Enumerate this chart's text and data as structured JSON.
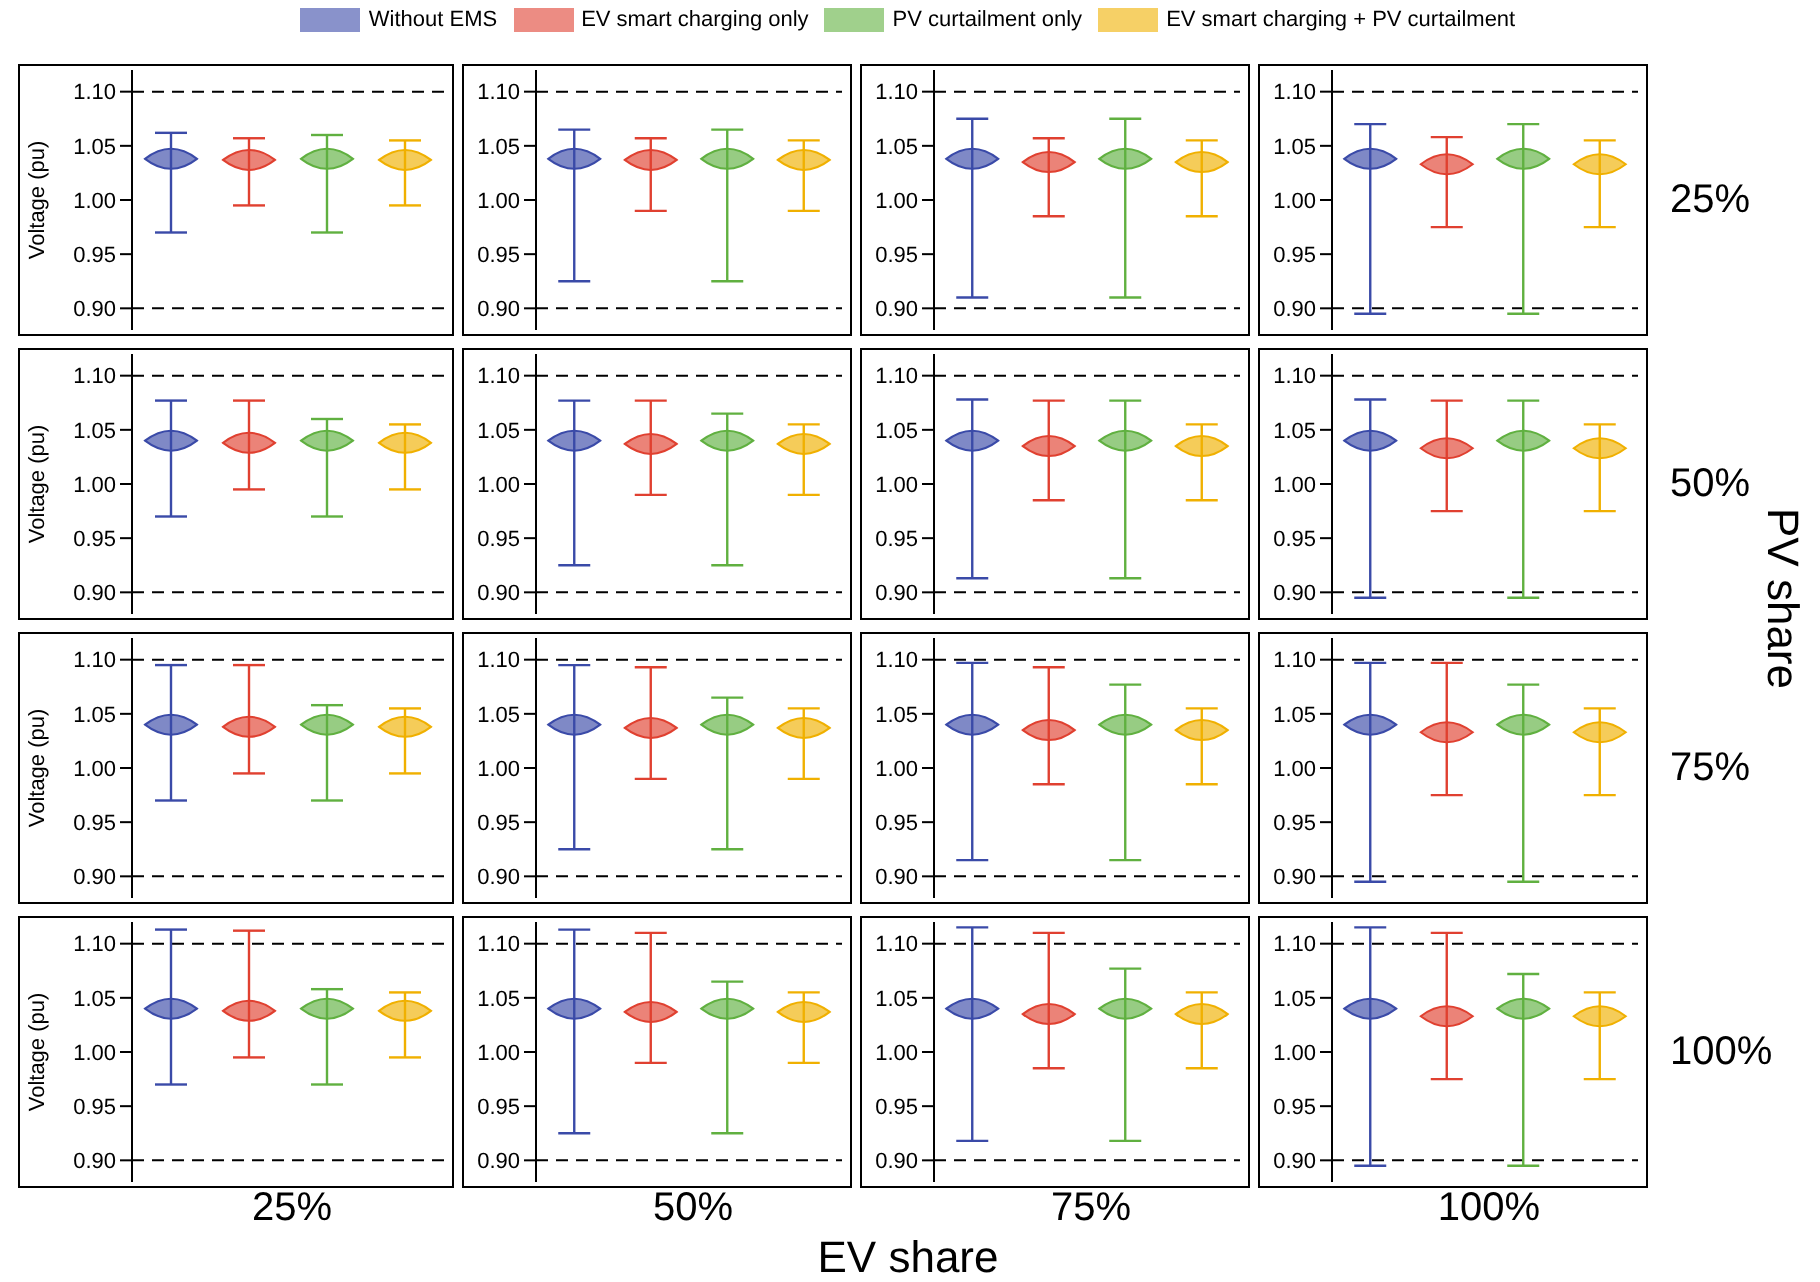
{
  "chart_data": [
    {
      "type": "scatter",
      "legend": "top",
      "annotations": [
        "EV share",
        "PV share"
      ],
      "ylabel": "Voltage (pu)",
      "categories": [
        null,
        null,
        null,
        null
      ],
      "ylim": [
        0.88,
        1.12
      ],
      "yticks": [
        {
          "value": 0.9,
          "label": "0.90"
        },
        {
          "value": 0.95,
          "label": "0.95"
        },
        {
          "value": 1.0,
          "label": "1.00"
        },
        {
          "value": 1.05,
          "label": "1.05"
        },
        {
          "value": 1.1,
          "label": "1.10"
        }
      ],
      "tick_labels": "y",
      "marker": "diamond",
      "ref_lines": [
        {
          "axis": "y",
          "value": 0.9,
          "line_style": "dashed"
        },
        {
          "axis": "y",
          "value": 1.1,
          "line_style": "dashed"
        }
      ],
      "series": [
        {
          "name": "Without EMS",
          "color": "#3a4aa8",
          "values": [
            1.038,
            null,
            null,
            null
          ],
          "errors": [
            [
              0.97,
              1.062
            ],
            null,
            null,
            null
          ]
        },
        {
          "name": "EV smart charging only",
          "color": "#e04030",
          "values": [
            null,
            1.037,
            null,
            null
          ],
          "errors": [
            null,
            [
              0.995,
              1.057
            ],
            null,
            null
          ]
        },
        {
          "name": "PV curtailment only",
          "color": "#60b040",
          "values": [
            null,
            null,
            1.038,
            null
          ],
          "errors": [
            null,
            null,
            [
              0.97,
              1.06
            ],
            null
          ]
        },
        {
          "name": "EV smart charging + PV curtailment",
          "color": "#f0b000",
          "values": [
            null,
            null,
            null,
            1.037
          ],
          "errors": [
            null,
            null,
            null,
            [
              0.995,
              1.055
            ]
          ]
        }
      ]
    },
    {
      "type": "scatter",
      "categories": [
        null,
        null,
        null,
        null
      ],
      "ylim": [
        0.88,
        1.12
      ],
      "yticks": [
        {
          "value": 0.9,
          "label": "0.90"
        },
        {
          "value": 0.95,
          "label": "0.95"
        },
        {
          "value": 1.0,
          "label": "1.00"
        },
        {
          "value": 1.05,
          "label": "1.05"
        },
        {
          "value": 1.1,
          "label": "1.10"
        }
      ],
      "tick_labels": "y",
      "marker": "diamond",
      "ref_lines": [
        {
          "axis": "y",
          "value": 0.9,
          "line_style": "dashed"
        },
        {
          "axis": "y",
          "value": 1.1,
          "line_style": "dashed"
        }
      ],
      "series": [
        {
          "color": "#3a4aa8",
          "values": [
            1.038,
            null,
            null,
            null
          ],
          "errors": [
            [
              0.925,
              1.065
            ],
            null,
            null,
            null
          ]
        },
        {
          "color": "#e04030",
          "values": [
            null,
            1.037,
            null,
            null
          ],
          "errors": [
            null,
            [
              0.99,
              1.057
            ],
            null,
            null
          ]
        },
        {
          "color": "#60b040",
          "values": [
            null,
            null,
            1.038,
            null
          ],
          "errors": [
            null,
            null,
            [
              0.925,
              1.065
            ],
            null
          ]
        },
        {
          "color": "#f0b000",
          "values": [
            null,
            null,
            null,
            1.037
          ],
          "errors": [
            null,
            null,
            null,
            [
              0.99,
              1.055
            ]
          ]
        }
      ]
    },
    {
      "type": "scatter",
      "categories": [
        null,
        null,
        null,
        null
      ],
      "ylim": [
        0.88,
        1.12
      ],
      "yticks": [
        {
          "value": 0.9,
          "label": "0.90"
        },
        {
          "value": 0.95,
          "label": "0.95"
        },
        {
          "value": 1.0,
          "label": "1.00"
        },
        {
          "value": 1.05,
          "label": "1.05"
        },
        {
          "value": 1.1,
          "label": "1.10"
        }
      ],
      "tick_labels": "y",
      "marker": "diamond",
      "ref_lines": [
        {
          "axis": "y",
          "value": 0.9,
          "line_style": "dashed"
        },
        {
          "axis": "y",
          "value": 1.1,
          "line_style": "dashed"
        }
      ],
      "series": [
        {
          "color": "#3a4aa8",
          "values": [
            1.038,
            null,
            null,
            null
          ],
          "errors": [
            [
              0.91,
              1.075
            ],
            null,
            null,
            null
          ]
        },
        {
          "color": "#e04030",
          "values": [
            null,
            1.035,
            null,
            null
          ],
          "errors": [
            null,
            [
              0.985,
              1.057
            ],
            null,
            null
          ]
        },
        {
          "color": "#60b040",
          "values": [
            null,
            null,
            1.038,
            null
          ],
          "errors": [
            null,
            null,
            [
              0.91,
              1.075
            ],
            null
          ]
        },
        {
          "color": "#f0b000",
          "values": [
            null,
            null,
            null,
            1.035
          ],
          "errors": [
            null,
            null,
            null,
            [
              0.985,
              1.055
            ]
          ]
        }
      ]
    },
    {
      "type": "scatter",
      "y2label": "25%",
      "categories": [
        null,
        null,
        null,
        null
      ],
      "ylim": [
        0.88,
        1.12
      ],
      "yticks": [
        {
          "value": 0.9,
          "label": "0.90"
        },
        {
          "value": 0.95,
          "label": "0.95"
        },
        {
          "value": 1.0,
          "label": "1.00"
        },
        {
          "value": 1.05,
          "label": "1.05"
        },
        {
          "value": 1.1,
          "label": "1.10"
        }
      ],
      "tick_labels": "y",
      "marker": "diamond",
      "ref_lines": [
        {
          "axis": "y",
          "value": 0.9,
          "line_style": "dashed"
        },
        {
          "axis": "y",
          "value": 1.1,
          "line_style": "dashed"
        }
      ],
      "series": [
        {
          "color": "#3a4aa8",
          "values": [
            1.038,
            null,
            null,
            null
          ],
          "errors": [
            [
              0.895,
              1.07
            ],
            null,
            null,
            null
          ]
        },
        {
          "color": "#e04030",
          "values": [
            null,
            1.033,
            null,
            null
          ],
          "errors": [
            null,
            [
              0.975,
              1.058
            ],
            null,
            null
          ]
        },
        {
          "color": "#60b040",
          "values": [
            null,
            null,
            1.038,
            null
          ],
          "errors": [
            null,
            null,
            [
              0.895,
              1.07
            ],
            null
          ]
        },
        {
          "color": "#f0b000",
          "values": [
            null,
            null,
            null,
            1.033
          ],
          "errors": [
            null,
            null,
            null,
            [
              0.975,
              1.055
            ]
          ]
        }
      ]
    },
    {
      "type": "scatter",
      "ylabel": "Voltage (pu)",
      "categories": [
        null,
        null,
        null,
        null
      ],
      "ylim": [
        0.88,
        1.12
      ],
      "yticks": [
        {
          "value": 0.9,
          "label": "0.90"
        },
        {
          "value": 0.95,
          "label": "0.95"
        },
        {
          "value": 1.0,
          "label": "1.00"
        },
        {
          "value": 1.05,
          "label": "1.05"
        },
        {
          "value": 1.1,
          "label": "1.10"
        }
      ],
      "tick_labels": "y",
      "marker": "diamond",
      "ref_lines": [
        {
          "axis": "y",
          "value": 0.9,
          "line_style": "dashed"
        },
        {
          "axis": "y",
          "value": 1.1,
          "line_style": "dashed"
        }
      ],
      "series": [
        {
          "color": "#3a4aa8",
          "values": [
            1.04,
            null,
            null,
            null
          ],
          "errors": [
            [
              0.97,
              1.077
            ],
            null,
            null,
            null
          ]
        },
        {
          "color": "#e04030",
          "values": [
            null,
            1.038,
            null,
            null
          ],
          "errors": [
            null,
            [
              0.995,
              1.077
            ],
            null,
            null
          ]
        },
        {
          "color": "#60b040",
          "values": [
            null,
            null,
            1.04,
            null
          ],
          "errors": [
            null,
            null,
            [
              0.97,
              1.06
            ],
            null
          ]
        },
        {
          "color": "#f0b000",
          "values": [
            null,
            null,
            null,
            1.038
          ],
          "errors": [
            null,
            null,
            null,
            [
              0.995,
              1.055
            ]
          ]
        }
      ]
    },
    {
      "type": "scatter",
      "categories": [
        null,
        null,
        null,
        null
      ],
      "ylim": [
        0.88,
        1.12
      ],
      "yticks": [
        {
          "value": 0.9,
          "label": "0.90"
        },
        {
          "value": 0.95,
          "label": "0.95"
        },
        {
          "value": 1.0,
          "label": "1.00"
        },
        {
          "value": 1.05,
          "label": "1.05"
        },
        {
          "value": 1.1,
          "label": "1.10"
        }
      ],
      "tick_labels": "y",
      "marker": "diamond",
      "ref_lines": [
        {
          "axis": "y",
          "value": 0.9,
          "line_style": "dashed"
        },
        {
          "axis": "y",
          "value": 1.1,
          "line_style": "dashed"
        }
      ],
      "series": [
        {
          "color": "#3a4aa8",
          "values": [
            1.04,
            null,
            null,
            null
          ],
          "errors": [
            [
              0.925,
              1.077
            ],
            null,
            null,
            null
          ]
        },
        {
          "color": "#e04030",
          "values": [
            null,
            1.037,
            null,
            null
          ],
          "errors": [
            null,
            [
              0.99,
              1.077
            ],
            null,
            null
          ]
        },
        {
          "color": "#60b040",
          "values": [
            null,
            null,
            1.04,
            null
          ],
          "errors": [
            null,
            null,
            [
              0.925,
              1.065
            ],
            null
          ]
        },
        {
          "color": "#f0b000",
          "values": [
            null,
            null,
            null,
            1.037
          ],
          "errors": [
            null,
            null,
            null,
            [
              0.99,
              1.055
            ]
          ]
        }
      ]
    },
    {
      "type": "scatter",
      "categories": [
        null,
        null,
        null,
        null
      ],
      "ylim": [
        0.88,
        1.12
      ],
      "yticks": [
        {
          "value": 0.9,
          "label": "0.90"
        },
        {
          "value": 0.95,
          "label": "0.95"
        },
        {
          "value": 1.0,
          "label": "1.00"
        },
        {
          "value": 1.05,
          "label": "1.05"
        },
        {
          "value": 1.1,
          "label": "1.10"
        }
      ],
      "tick_labels": "y",
      "marker": "diamond",
      "ref_lines": [
        {
          "axis": "y",
          "value": 0.9,
          "line_style": "dashed"
        },
        {
          "axis": "y",
          "value": 1.1,
          "line_style": "dashed"
        }
      ],
      "series": [
        {
          "color": "#3a4aa8",
          "values": [
            1.04,
            null,
            null,
            null
          ],
          "errors": [
            [
              0.913,
              1.078
            ],
            null,
            null,
            null
          ]
        },
        {
          "color": "#e04030",
          "values": [
            null,
            1.035,
            null,
            null
          ],
          "errors": [
            null,
            [
              0.985,
              1.077
            ],
            null,
            null
          ]
        },
        {
          "color": "#60b040",
          "values": [
            null,
            null,
            1.04,
            null
          ],
          "errors": [
            null,
            null,
            [
              0.913,
              1.077
            ],
            null
          ]
        },
        {
          "color": "#f0b000",
          "values": [
            null,
            null,
            null,
            1.035
          ],
          "errors": [
            null,
            null,
            null,
            [
              0.985,
              1.055
            ]
          ]
        }
      ]
    },
    {
      "type": "scatter",
      "y2label": "50%",
      "categories": [
        null,
        null,
        null,
        null
      ],
      "ylim": [
        0.88,
        1.12
      ],
      "yticks": [
        {
          "value": 0.9,
          "label": "0.90"
        },
        {
          "value": 0.95,
          "label": "0.95"
        },
        {
          "value": 1.0,
          "label": "1.00"
        },
        {
          "value": 1.05,
          "label": "1.05"
        },
        {
          "value": 1.1,
          "label": "1.10"
        }
      ],
      "tick_labels": "y",
      "marker": "diamond",
      "ref_lines": [
        {
          "axis": "y",
          "value": 0.9,
          "line_style": "dashed"
        },
        {
          "axis": "y",
          "value": 1.1,
          "line_style": "dashed"
        }
      ],
      "series": [
        {
          "color": "#3a4aa8",
          "values": [
            1.04,
            null,
            null,
            null
          ],
          "errors": [
            [
              0.895,
              1.078
            ],
            null,
            null,
            null
          ]
        },
        {
          "color": "#e04030",
          "values": [
            null,
            1.033,
            null,
            null
          ],
          "errors": [
            null,
            [
              0.975,
              1.077
            ],
            null,
            null
          ]
        },
        {
          "color": "#60b040",
          "values": [
            null,
            null,
            1.04,
            null
          ],
          "errors": [
            null,
            null,
            [
              0.895,
              1.077
            ],
            null
          ]
        },
        {
          "color": "#f0b000",
          "values": [
            null,
            null,
            null,
            1.033
          ],
          "errors": [
            null,
            null,
            null,
            [
              0.975,
              1.055
            ]
          ]
        }
      ]
    },
    {
      "type": "scatter",
      "ylabel": "Voltage (pu)",
      "categories": [
        null,
        null,
        null,
        null
      ],
      "ylim": [
        0.88,
        1.12
      ],
      "yticks": [
        {
          "value": 0.9,
          "label": "0.90"
        },
        {
          "value": 0.95,
          "label": "0.95"
        },
        {
          "value": 1.0,
          "label": "1.00"
        },
        {
          "value": 1.05,
          "label": "1.05"
        },
        {
          "value": 1.1,
          "label": "1.10"
        }
      ],
      "tick_labels": "y",
      "marker": "diamond",
      "ref_lines": [
        {
          "axis": "y",
          "value": 0.9,
          "line_style": "dashed"
        },
        {
          "axis": "y",
          "value": 1.1,
          "line_style": "dashed"
        }
      ],
      "series": [
        {
          "color": "#3a4aa8",
          "values": [
            1.04,
            null,
            null,
            null
          ],
          "errors": [
            [
              0.97,
              1.095
            ],
            null,
            null,
            null
          ]
        },
        {
          "color": "#e04030",
          "values": [
            null,
            1.038,
            null,
            null
          ],
          "errors": [
            null,
            [
              0.995,
              1.095
            ],
            null,
            null
          ]
        },
        {
          "color": "#60b040",
          "values": [
            null,
            null,
            1.04,
            null
          ],
          "errors": [
            null,
            null,
            [
              0.97,
              1.058
            ],
            null
          ]
        },
        {
          "color": "#f0b000",
          "values": [
            null,
            null,
            null,
            1.038
          ],
          "errors": [
            null,
            null,
            null,
            [
              0.995,
              1.055
            ]
          ]
        }
      ]
    },
    {
      "type": "scatter",
      "categories": [
        null,
        null,
        null,
        null
      ],
      "ylim": [
        0.88,
        1.12
      ],
      "yticks": [
        {
          "value": 0.9,
          "label": "0.90"
        },
        {
          "value": 0.95,
          "label": "0.95"
        },
        {
          "value": 1.0,
          "label": "1.00"
        },
        {
          "value": 1.05,
          "label": "1.05"
        },
        {
          "value": 1.1,
          "label": "1.10"
        }
      ],
      "tick_labels": "y",
      "marker": "diamond",
      "ref_lines": [
        {
          "axis": "y",
          "value": 0.9,
          "line_style": "dashed"
        },
        {
          "axis": "y",
          "value": 1.1,
          "line_style": "dashed"
        }
      ],
      "series": [
        {
          "color": "#3a4aa8",
          "values": [
            1.04,
            null,
            null,
            null
          ],
          "errors": [
            [
              0.925,
              1.095
            ],
            null,
            null,
            null
          ]
        },
        {
          "color": "#e04030",
          "values": [
            null,
            1.037,
            null,
            null
          ],
          "errors": [
            null,
            [
              0.99,
              1.093
            ],
            null,
            null
          ]
        },
        {
          "color": "#60b040",
          "values": [
            null,
            null,
            1.04,
            null
          ],
          "errors": [
            null,
            null,
            [
              0.925,
              1.065
            ],
            null
          ]
        },
        {
          "color": "#f0b000",
          "values": [
            null,
            null,
            null,
            1.037
          ],
          "errors": [
            null,
            null,
            null,
            [
              0.99,
              1.055
            ]
          ]
        }
      ]
    },
    {
      "type": "scatter",
      "categories": [
        null,
        null,
        null,
        null
      ],
      "ylim": [
        0.88,
        1.12
      ],
      "yticks": [
        {
          "value": 0.9,
          "label": "0.90"
        },
        {
          "value": 0.95,
          "label": "0.95"
        },
        {
          "value": 1.0,
          "label": "1.00"
        },
        {
          "value": 1.05,
          "label": "1.05"
        },
        {
          "value": 1.1,
          "label": "1.10"
        }
      ],
      "tick_labels": "y",
      "marker": "diamond",
      "ref_lines": [
        {
          "axis": "y",
          "value": 0.9,
          "line_style": "dashed"
        },
        {
          "axis": "y",
          "value": 1.1,
          "line_style": "dashed"
        }
      ],
      "series": [
        {
          "color": "#3a4aa8",
          "values": [
            1.04,
            null,
            null,
            null
          ],
          "errors": [
            [
              0.915,
              1.097
            ],
            null,
            null,
            null
          ]
        },
        {
          "color": "#e04030",
          "values": [
            null,
            1.035,
            null,
            null
          ],
          "errors": [
            null,
            [
              0.985,
              1.093
            ],
            null,
            null
          ]
        },
        {
          "color": "#60b040",
          "values": [
            null,
            null,
            1.04,
            null
          ],
          "errors": [
            null,
            null,
            [
              0.915,
              1.077
            ],
            null
          ]
        },
        {
          "color": "#f0b000",
          "values": [
            null,
            null,
            null,
            1.035
          ],
          "errors": [
            null,
            null,
            null,
            [
              0.985,
              1.055
            ]
          ]
        }
      ]
    },
    {
      "type": "scatter",
      "y2label": "75%",
      "categories": [
        null,
        null,
        null,
        null
      ],
      "ylim": [
        0.88,
        1.12
      ],
      "yticks": [
        {
          "value": 0.9,
          "label": "0.90"
        },
        {
          "value": 0.95,
          "label": "0.95"
        },
        {
          "value": 1.0,
          "label": "1.00"
        },
        {
          "value": 1.05,
          "label": "1.05"
        },
        {
          "value": 1.1,
          "label": "1.10"
        }
      ],
      "tick_labels": "y",
      "marker": "diamond",
      "ref_lines": [
        {
          "axis": "y",
          "value": 0.9,
          "line_style": "dashed"
        },
        {
          "axis": "y",
          "value": 1.1,
          "line_style": "dashed"
        }
      ],
      "series": [
        {
          "color": "#3a4aa8",
          "values": [
            1.04,
            null,
            null,
            null
          ],
          "errors": [
            [
              0.895,
              1.097
            ],
            null,
            null,
            null
          ]
        },
        {
          "color": "#e04030",
          "values": [
            null,
            1.033,
            null,
            null
          ],
          "errors": [
            null,
            [
              0.975,
              1.097
            ],
            null,
            null
          ]
        },
        {
          "color": "#60b040",
          "values": [
            null,
            null,
            1.04,
            null
          ],
          "errors": [
            null,
            null,
            [
              0.895,
              1.077
            ],
            null
          ]
        },
        {
          "color": "#f0b000",
          "values": [
            null,
            null,
            null,
            1.033
          ],
          "errors": [
            null,
            null,
            null,
            [
              0.975,
              1.055
            ]
          ]
        }
      ]
    },
    {
      "type": "scatter",
      "ylabel": "Voltage (pu)",
      "xlabel": "25%",
      "categories": [
        null,
        null,
        null,
        null
      ],
      "ylim": [
        0.88,
        1.12
      ],
      "yticks": [
        {
          "value": 0.9,
          "label": "0.90"
        },
        {
          "value": 0.95,
          "label": "0.95"
        },
        {
          "value": 1.0,
          "label": "1.00"
        },
        {
          "value": 1.05,
          "label": "1.05"
        },
        {
          "value": 1.1,
          "label": "1.10"
        }
      ],
      "tick_labels": "y",
      "marker": "diamond",
      "ref_lines": [
        {
          "axis": "y",
          "value": 0.9,
          "line_style": "dashed"
        },
        {
          "axis": "y",
          "value": 1.1,
          "line_style": "dashed"
        }
      ],
      "series": [
        {
          "color": "#3a4aa8",
          "values": [
            1.04,
            null,
            null,
            null
          ],
          "errors": [
            [
              0.97,
              1.113
            ],
            null,
            null,
            null
          ]
        },
        {
          "color": "#e04030",
          "values": [
            null,
            1.038,
            null,
            null
          ],
          "errors": [
            null,
            [
              0.995,
              1.112
            ],
            null,
            null
          ]
        },
        {
          "color": "#60b040",
          "values": [
            null,
            null,
            1.04,
            null
          ],
          "errors": [
            null,
            null,
            [
              0.97,
              1.058
            ],
            null
          ]
        },
        {
          "color": "#f0b000",
          "values": [
            null,
            null,
            null,
            1.038
          ],
          "errors": [
            null,
            null,
            null,
            [
              0.995,
              1.055
            ]
          ]
        }
      ]
    },
    {
      "type": "scatter",
      "xlabel": "50%",
      "categories": [
        null,
        null,
        null,
        null
      ],
      "ylim": [
        0.88,
        1.12
      ],
      "yticks": [
        {
          "value": 0.9,
          "label": "0.90"
        },
        {
          "value": 0.95,
          "label": "0.95"
        },
        {
          "value": 1.0,
          "label": "1.00"
        },
        {
          "value": 1.05,
          "label": "1.05"
        },
        {
          "value": 1.1,
          "label": "1.10"
        }
      ],
      "tick_labels": "y",
      "marker": "diamond",
      "ref_lines": [
        {
          "axis": "y",
          "value": 0.9,
          "line_style": "dashed"
        },
        {
          "axis": "y",
          "value": 1.1,
          "line_style": "dashed"
        }
      ],
      "series": [
        {
          "color": "#3a4aa8",
          "values": [
            1.04,
            null,
            null,
            null
          ],
          "errors": [
            [
              0.925,
              1.113
            ],
            null,
            null,
            null
          ]
        },
        {
          "color": "#e04030",
          "values": [
            null,
            1.037,
            null,
            null
          ],
          "errors": [
            null,
            [
              0.99,
              1.11
            ],
            null,
            null
          ]
        },
        {
          "color": "#60b040",
          "values": [
            null,
            null,
            1.04,
            null
          ],
          "errors": [
            null,
            null,
            [
              0.925,
              1.065
            ],
            null
          ]
        },
        {
          "color": "#f0b000",
          "values": [
            null,
            null,
            null,
            1.037
          ],
          "errors": [
            null,
            null,
            null,
            [
              0.99,
              1.055
            ]
          ]
        }
      ]
    },
    {
      "type": "scatter",
      "xlabel": "75%",
      "categories": [
        null,
        null,
        null,
        null
      ],
      "ylim": [
        0.88,
        1.12
      ],
      "yticks": [
        {
          "value": 0.9,
          "label": "0.90"
        },
        {
          "value": 0.95,
          "label": "0.95"
        },
        {
          "value": 1.0,
          "label": "1.00"
        },
        {
          "value": 1.05,
          "label": "1.05"
        },
        {
          "value": 1.1,
          "label": "1.10"
        }
      ],
      "tick_labels": "y",
      "marker": "diamond",
      "ref_lines": [
        {
          "axis": "y",
          "value": 0.9,
          "line_style": "dashed"
        },
        {
          "axis": "y",
          "value": 1.1,
          "line_style": "dashed"
        }
      ],
      "series": [
        {
          "color": "#3a4aa8",
          "values": [
            1.04,
            null,
            null,
            null
          ],
          "errors": [
            [
              0.918,
              1.115
            ],
            null,
            null,
            null
          ]
        },
        {
          "color": "#e04030",
          "values": [
            null,
            1.035,
            null,
            null
          ],
          "errors": [
            null,
            [
              0.985,
              1.11
            ],
            null,
            null
          ]
        },
        {
          "color": "#60b040",
          "values": [
            null,
            null,
            1.04,
            null
          ],
          "errors": [
            null,
            null,
            [
              0.918,
              1.077
            ],
            null
          ]
        },
        {
          "color": "#f0b000",
          "values": [
            null,
            null,
            null,
            1.035
          ],
          "errors": [
            null,
            null,
            null,
            [
              0.985,
              1.055
            ]
          ]
        }
      ]
    },
    {
      "type": "scatter",
      "xlabel": "100%",
      "y2label": "100%",
      "categories": [
        null,
        null,
        null,
        null
      ],
      "ylim": [
        0.88,
        1.12
      ],
      "yticks": [
        {
          "value": 0.9,
          "label": "0.90"
        },
        {
          "value": 0.95,
          "label": "0.95"
        },
        {
          "value": 1.0,
          "label": "1.00"
        },
        {
          "value": 1.05,
          "label": "1.05"
        },
        {
          "value": 1.1,
          "label": "1.10"
        }
      ],
      "tick_labels": "y",
      "marker": "diamond",
      "ref_lines": [
        {
          "axis": "y",
          "value": 0.9,
          "line_style": "dashed"
        },
        {
          "axis": "y",
          "value": 1.1,
          "line_style": "dashed"
        }
      ],
      "series": [
        {
          "color": "#3a4aa8",
          "values": [
            1.04,
            null,
            null,
            null
          ],
          "errors": [
            [
              0.895,
              1.115
            ],
            null,
            null,
            null
          ]
        },
        {
          "color": "#e04030",
          "values": [
            null,
            1.033,
            null,
            null
          ],
          "errors": [
            null,
            [
              0.975,
              1.11
            ],
            null,
            null
          ]
        },
        {
          "color": "#60b040",
          "values": [
            null,
            null,
            1.04,
            null
          ],
          "errors": [
            null,
            null,
            [
              0.895,
              1.072
            ],
            null
          ]
        },
        {
          "color": "#f0b000",
          "values": [
            null,
            null,
            null,
            1.033
          ],
          "errors": [
            null,
            null,
            null,
            [
              0.975,
              1.055
            ]
          ]
        }
      ]
    }
  ]
}
